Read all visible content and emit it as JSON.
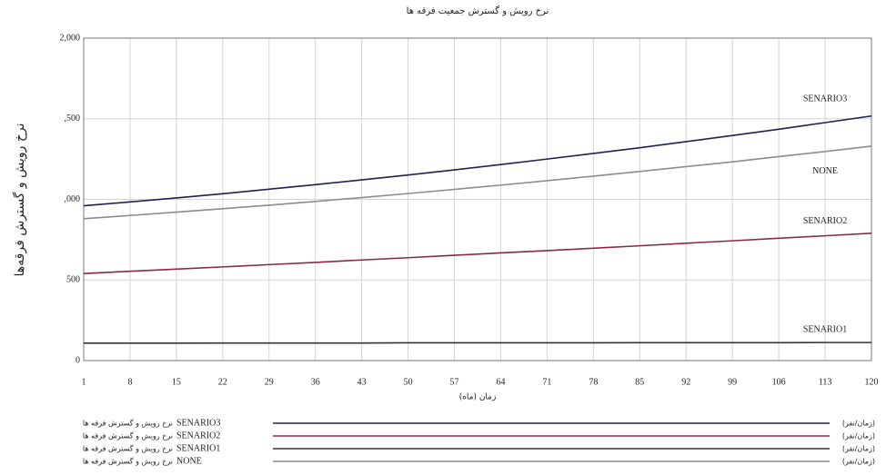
{
  "chart_data": {
    "type": "line",
    "title": "نرخ رویش و گسترش جمعیت فرقه ها",
    "x_label": "زمان (ماه)",
    "y_label": "نرخ رویش و گسترش فرقه‌ها",
    "legend_label": "نرخ رویش و گسترش فرقه ها",
    "legend_unit": "(زمان/نفر)",
    "x": [
      1,
      8,
      15,
      22,
      29,
      36,
      43,
      50,
      57,
      64,
      71,
      78,
      85,
      92,
      99,
      106,
      113,
      120
    ],
    "xlim": [
      1,
      120
    ],
    "xticks": [
      1,
      8,
      15,
      22,
      29,
      36,
      43,
      50,
      57,
      64,
      71,
      78,
      85,
      92,
      99,
      106,
      113,
      120
    ],
    "ylim": [
      0,
      2000
    ],
    "yticks": [
      0,
      500,
      {
        "value": 1000,
        "label": ",000"
      },
      {
        "value": 1500,
        "label": ",500"
      },
      {
        "value": 2000,
        "label": "2,000"
      }
    ],
    "grid": true,
    "series": [
      {
        "name": "SENARIO3",
        "color": "#1c2350",
        "values": [
          960,
          984,
          1009,
          1035,
          1063,
          1091,
          1121,
          1151,
          1183,
          1216,
          1250,
          1285,
          1320,
          1358,
          1396,
          1435,
          1476,
          1517
        ]
      },
      {
        "name": "SENARIO2",
        "color": "#8a2a3e",
        "values": [
          540,
          554,
          567,
          581,
          595,
          609,
          624,
          638,
          653,
          668,
          682,
          697,
          712,
          728,
          743,
          759,
          774,
          790
        ]
      },
      {
        "name": "SENARIO1",
        "color": "#333333",
        "values": [
          108,
          108,
          108,
          109,
          109,
          109,
          109,
          110,
          110,
          110,
          110,
          110,
          111,
          111,
          111,
          111,
          112,
          112
        ]
      },
      {
        "name": "NONE",
        "color": "#8c8c8c",
        "values": [
          880,
          900,
          921,
          942,
          964,
          987,
          1011,
          1036,
          1062,
          1088,
          1116,
          1144,
          1173,
          1203,
          1233,
          1265,
          1297,
          1330
        ]
      }
    ]
  }
}
